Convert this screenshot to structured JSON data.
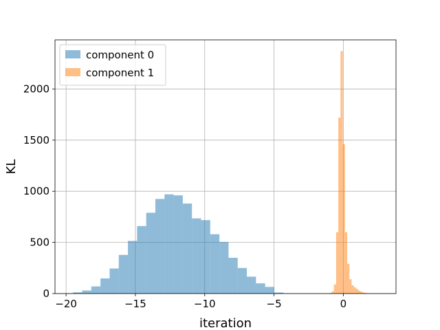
{
  "chart_data": {
    "type": "histogram",
    "xlabel": "iteration",
    "ylabel": "KL",
    "xlim": [
      -20.8,
      3.8
    ],
    "ylim": [
      0,
      2480
    ],
    "xticks": [
      -20,
      -15,
      -10,
      -5,
      0
    ],
    "xtick_labels": [
      "−20",
      "−15",
      "−10",
      "−5",
      "0"
    ],
    "yticks": [
      0,
      500,
      1000,
      1500,
      2000
    ],
    "ytick_labels": [
      "0",
      "500",
      "1000",
      "1500",
      "2000"
    ],
    "grid": true,
    "legend_position": "upper-left",
    "series": [
      {
        "name": "component 0",
        "color": "#1f77b4",
        "opacity": 0.5,
        "bins": [
          [
            -19.5,
            -18.84,
            12
          ],
          [
            -18.84,
            -18.18,
            30
          ],
          [
            -18.18,
            -17.52,
            70
          ],
          [
            -17.52,
            -16.86,
            148
          ],
          [
            -16.86,
            -16.2,
            245
          ],
          [
            -16.2,
            -15.54,
            378
          ],
          [
            -15.54,
            -14.88,
            515
          ],
          [
            -14.88,
            -14.22,
            660
          ],
          [
            -14.22,
            -13.56,
            790
          ],
          [
            -13.56,
            -12.9,
            925
          ],
          [
            -12.9,
            -12.24,
            970
          ],
          [
            -12.24,
            -11.58,
            960
          ],
          [
            -11.58,
            -10.92,
            880
          ],
          [
            -10.92,
            -10.26,
            735
          ],
          [
            -10.26,
            -9.6,
            718
          ],
          [
            -9.6,
            -8.94,
            580
          ],
          [
            -8.94,
            -8.28,
            505
          ],
          [
            -8.28,
            -7.62,
            350
          ],
          [
            -7.62,
            -6.96,
            250
          ],
          [
            -6.96,
            -6.3,
            165
          ],
          [
            -6.3,
            -5.64,
            100
          ],
          [
            -5.64,
            -4.98,
            65
          ],
          [
            -4.98,
            -4.32,
            10
          ]
        ]
      },
      {
        "name": "component 1",
        "color": "#ff7f0e",
        "opacity": 0.5,
        "bins": [
          [
            -1.0,
            -0.84,
            5
          ],
          [
            -0.84,
            -0.68,
            20
          ],
          [
            -0.68,
            -0.52,
            90
          ],
          [
            -0.52,
            -0.36,
            600
          ],
          [
            -0.36,
            -0.2,
            1720
          ],
          [
            -0.2,
            -0.04,
            2370
          ],
          [
            -0.04,
            0.12,
            1460
          ],
          [
            0.12,
            0.28,
            600
          ],
          [
            0.28,
            0.44,
            290
          ],
          [
            0.44,
            0.6,
            140
          ],
          [
            0.6,
            0.76,
            80
          ],
          [
            0.76,
            0.92,
            60
          ],
          [
            0.92,
            1.08,
            45
          ],
          [
            1.08,
            1.24,
            28
          ],
          [
            1.24,
            1.4,
            18
          ],
          [
            1.4,
            1.56,
            10
          ],
          [
            1.56,
            1.72,
            6
          ],
          [
            1.72,
            1.88,
            3
          ]
        ]
      }
    ]
  }
}
